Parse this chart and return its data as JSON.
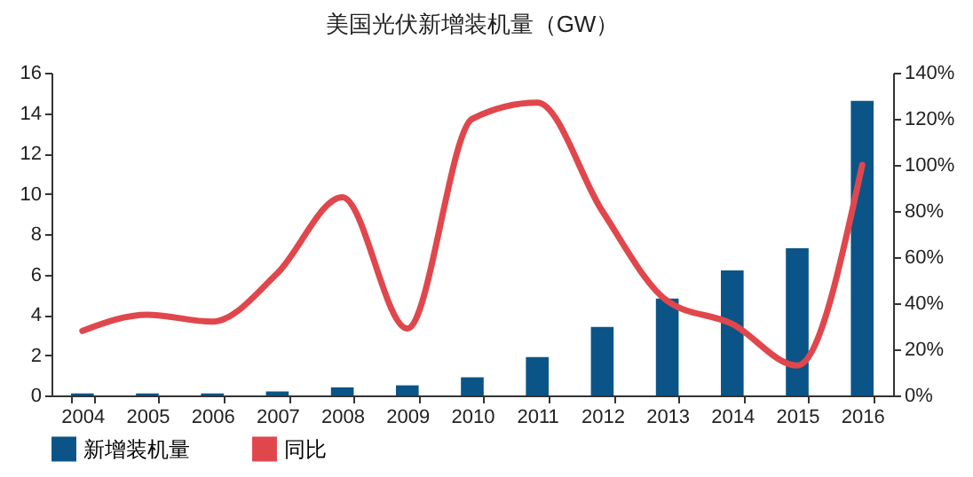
{
  "chart_data": {
    "type": "bar",
    "title": "美国光伏新增装机量（GW）",
    "categories": [
      "2004",
      "2005",
      "2006",
      "2007",
      "2008",
      "2009",
      "2010",
      "2011",
      "2012",
      "2013",
      "2014",
      "2015",
      "2016"
    ],
    "series": [
      {
        "name": "新增装机量",
        "color": "#0b5487",
        "values": [
          0.1,
          0.1,
          0.1,
          0.2,
          0.4,
          0.5,
          0.9,
          1.9,
          3.4,
          4.8,
          6.2,
          7.3,
          14.6
        ]
      },
      {
        "name": "同比",
        "type": "line",
        "axis": "y2",
        "color": "#e0474c",
        "values": [
          28,
          35,
          32,
          53,
          86,
          29,
          120,
          127,
          80,
          41,
          31,
          13,
          100
        ]
      }
    ],
    "ylim": [
      0,
      16
    ],
    "yticks": [
      0,
      2,
      4,
      6,
      8,
      10,
      12,
      14,
      16
    ],
    "y2lim": [
      0,
      140
    ],
    "y2ticks": [
      {
        "value": 0,
        "label": "0%"
      },
      {
        "value": 20,
        "label": "20%"
      },
      {
        "value": 40,
        "label": "40%"
      },
      {
        "value": 60,
        "label": "60%"
      },
      {
        "value": 80,
        "label": "80%"
      },
      {
        "value": 100,
        "label": "100%"
      },
      {
        "value": 120,
        "label": "120%"
      },
      {
        "value": 140,
        "label": "140%"
      }
    ],
    "legend": "bottom",
    "grid": false,
    "marker": "none",
    "line_style": "solid"
  }
}
